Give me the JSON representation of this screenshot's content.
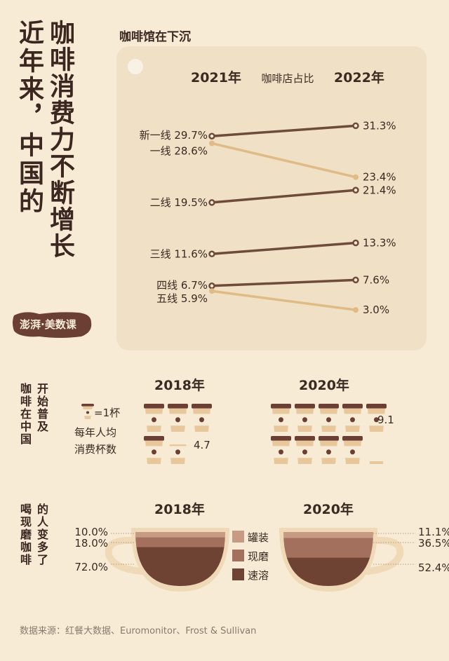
{
  "title_left": "近年来，中国的",
  "title_right": "咖啡消费力不断增长",
  "section1": {
    "subtitle": "咖啡馆在下沉",
    "year_left": "2021年",
    "year_right": "2022年",
    "header": "咖啡店占比"
  },
  "logo_text": "澎湃·美数课",
  "chart_data": [
    {
      "type": "line",
      "title": "咖啡馆在下沉",
      "subtitle": "咖啡店占比",
      "x": [
        "2021年",
        "2022年"
      ],
      "series": [
        {
          "name": "新一线",
          "values": [
            29.7,
            31.3
          ],
          "labels": [
            "新一线 29.7%",
            "31.3%"
          ],
          "color": "#6e4b3a"
        },
        {
          "name": "一线",
          "values": [
            28.6,
            23.4
          ],
          "labels": [
            "一线 28.6%",
            "23.4%"
          ],
          "color": "#e0bb86"
        },
        {
          "name": "二线",
          "values": [
            19.5,
            21.4
          ],
          "labels": [
            "二线 19.5%",
            "21.4%"
          ],
          "color": "#6e4b3a"
        },
        {
          "name": "三线",
          "values": [
            11.6,
            13.3
          ],
          "labels": [
            "三线 11.6%",
            "13.3%"
          ],
          "color": "#6e4b3a"
        },
        {
          "name": "四线",
          "values": [
            6.7,
            7.6
          ],
          "labels": [
            "四线 6.7%",
            "7.6%"
          ],
          "color": "#6e4b3a"
        },
        {
          "name": "五线",
          "values": [
            5.9,
            3.0
          ],
          "labels": [
            "五线 5.9%",
            "3.0%"
          ],
          "color": "#e0bb86"
        }
      ],
      "ylim": [
        0,
        35
      ]
    },
    {
      "type": "bar",
      "title": "咖啡在中国开始普及",
      "ylabel": "每年人均消费杯数",
      "unit_legend": "=1杯",
      "categories": [
        "2018年",
        "2020年"
      ],
      "values": [
        4.7,
        9.1
      ],
      "value_labels": [
        "4.7",
        "9.1"
      ]
    },
    {
      "type": "bar",
      "title": "喝现磨咖啡的人变多了",
      "categories": [
        "2018年",
        "2020年"
      ],
      "series": [
        {
          "name": "罐装",
          "values": [
            10.0,
            11.1
          ],
          "labels": [
            "10.0%",
            "11.1%"
          ],
          "color": "#c79a83"
        },
        {
          "name": "现磨",
          "values": [
            18.0,
            36.5
          ],
          "labels": [
            "18.0%",
            "36.5%"
          ],
          "color": "#a3705d"
        },
        {
          "name": "速溶",
          "values": [
            72.0,
            52.4
          ],
          "labels": [
            "72.0%",
            "52.4%"
          ],
          "color": "#6f4334"
        }
      ]
    }
  ],
  "section2": {
    "title_a": "咖啡在中国",
    "title_b": "开始普及"
  },
  "section3": {
    "title_a": "喝现磨咖啡",
    "title_b": "的人变多了"
  },
  "source": "数据来源：红餐大数据、Euromonitor、Frost & Sullivan"
}
